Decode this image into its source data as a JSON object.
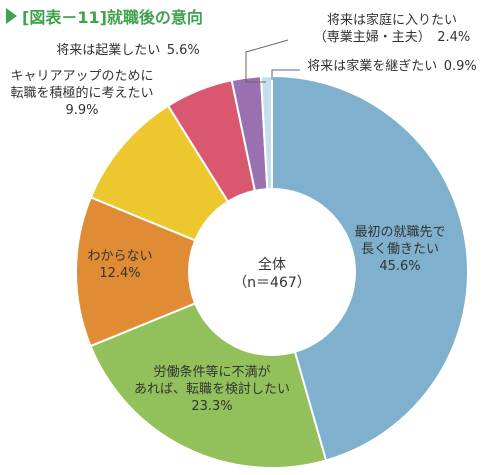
{
  "figure": {
    "title": "[図表－11]就職後の意向"
  },
  "chart_data": {
    "type": "pie",
    "title": "[図表－11]就職後の意向",
    "center_label": [
      "全体",
      "（n＝467）"
    ],
    "slices": [
      {
        "label": [
          "最初の就職先で",
          "長く働きたい"
        ],
        "value": 45.6,
        "value_text": "45.6%",
        "color": "#7fb0cd"
      },
      {
        "label": [
          "労働条件等に不満が",
          "あれば、転職を検討したい"
        ],
        "value": 23.3,
        "value_text": "23.3%",
        "color": "#92c05b"
      },
      {
        "label": [
          "わからない"
        ],
        "value": 12.4,
        "value_text": "12.4%",
        "color": "#e08c35"
      },
      {
        "label": [
          "キャリアアップのために",
          "転職を積極的に考えたい"
        ],
        "value": 9.9,
        "value_text": "9.9%",
        "color": "#ecc72d"
      },
      {
        "label": [
          "将来は起業したい"
        ],
        "value": 5.6,
        "value_text": "5.6%",
        "color": "#d95870"
      },
      {
        "label": [
          "将来は家庭に入りたい",
          "（専業主婦・主夫）"
        ],
        "value": 2.4,
        "value_text": "2.4%",
        "color": "#9a70b0"
      },
      {
        "label": [
          "将来は家業を継ぎたい"
        ],
        "value": 0.9,
        "value_text": "0.9%",
        "color": "#c6dfec"
      }
    ]
  }
}
